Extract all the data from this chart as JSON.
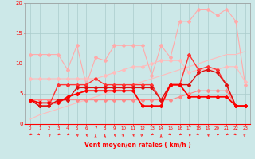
{
  "x": [
    0,
    1,
    2,
    3,
    4,
    5,
    6,
    7,
    8,
    9,
    10,
    11,
    12,
    13,
    14,
    15,
    16,
    17,
    18,
    19,
    20,
    21,
    22,
    23
  ],
  "lines": [
    {
      "color": "#ffaaaa",
      "lw": 0.8,
      "y": [
        11.5,
        11.5,
        11.5,
        11.5,
        9.0,
        13.0,
        6.5,
        11.0,
        10.5,
        13.0,
        13.0,
        13.0,
        13.0,
        8.0,
        13.0,
        11.0,
        17.0,
        17.0,
        19.0,
        19.0,
        18.0,
        19.0,
        17.0,
        6.5
      ],
      "marker": "D",
      "ms": 2.0
    },
    {
      "color": "#ffbbbb",
      "lw": 0.8,
      "y": [
        7.5,
        7.5,
        7.5,
        7.5,
        7.5,
        7.5,
        7.5,
        7.5,
        8.0,
        8.5,
        9.0,
        9.5,
        9.5,
        10.0,
        10.5,
        10.5,
        10.5,
        8.5,
        9.0,
        9.0,
        9.0,
        9.5,
        9.5,
        7.0
      ],
      "marker": "D",
      "ms": 2.0
    },
    {
      "color": "#ffbbbb",
      "lw": 0.8,
      "y": [
        0.8,
        1.5,
        2.0,
        2.5,
        3.0,
        3.5,
        4.0,
        4.5,
        5.0,
        5.5,
        6.0,
        6.5,
        7.0,
        7.5,
        8.0,
        8.5,
        9.0,
        9.5,
        10.0,
        10.5,
        11.0,
        11.5,
        11.5,
        12.0
      ],
      "marker": null,
      "ms": 0
    },
    {
      "color": "#ff8888",
      "lw": 0.8,
      "y": [
        4.0,
        4.0,
        4.0,
        4.0,
        4.0,
        4.0,
        4.0,
        4.0,
        4.0,
        4.0,
        4.0,
        4.0,
        4.0,
        4.0,
        4.0,
        4.0,
        4.5,
        5.0,
        5.5,
        5.5,
        5.5,
        5.5,
        3.0,
        3.0
      ],
      "marker": "D",
      "ms": 2.0
    },
    {
      "color": "#ff3333",
      "lw": 1.0,
      "y": [
        4.0,
        3.0,
        3.0,
        6.5,
        6.5,
        6.5,
        6.5,
        7.5,
        6.5,
        6.5,
        6.5,
        6.5,
        6.5,
        6.5,
        4.0,
        6.5,
        6.5,
        11.5,
        9.0,
        9.5,
        9.0,
        6.5,
        3.0,
        3.0
      ],
      "marker": "D",
      "ms": 2.0
    },
    {
      "color": "#dd1111",
      "lw": 1.0,
      "y": [
        4.0,
        3.0,
        3.0,
        4.0,
        4.0,
        6.0,
        6.0,
        6.0,
        6.0,
        6.0,
        6.0,
        6.0,
        6.0,
        6.0,
        4.0,
        6.5,
        6.5,
        6.5,
        8.5,
        9.0,
        8.5,
        6.5,
        3.0,
        3.0
      ],
      "marker": "D",
      "ms": 2.0
    },
    {
      "color": "#ff0000",
      "lw": 1.3,
      "y": [
        4.0,
        3.5,
        3.5,
        3.5,
        4.5,
        5.0,
        5.5,
        5.5,
        5.5,
        5.5,
        5.5,
        5.5,
        3.0,
        3.0,
        3.0,
        6.5,
        6.5,
        4.5,
        4.5,
        4.5,
        4.5,
        4.5,
        3.0,
        3.0
      ],
      "marker": "D",
      "ms": 2.0
    }
  ],
  "xlabel": "Vent moyen/en rafales ( km/h )",
  "xlim": [
    -0.5,
    23.5
  ],
  "ylim": [
    0,
    20
  ],
  "yticks": [
    0,
    5,
    10,
    15,
    20
  ],
  "xticks": [
    0,
    1,
    2,
    3,
    4,
    5,
    6,
    7,
    8,
    9,
    10,
    11,
    12,
    13,
    14,
    15,
    16,
    17,
    18,
    19,
    20,
    21,
    22,
    23
  ],
  "bg_color": "#cce8e8",
  "grid_color": "#aacccc",
  "label_color": "#ff0000",
  "arrow_angles": [
    315,
    45,
    225,
    315,
    315,
    225,
    225,
    180,
    180,
    225,
    135,
    225,
    135,
    315,
    180,
    45,
    315,
    225,
    45,
    225,
    315,
    315,
    45,
    135
  ]
}
